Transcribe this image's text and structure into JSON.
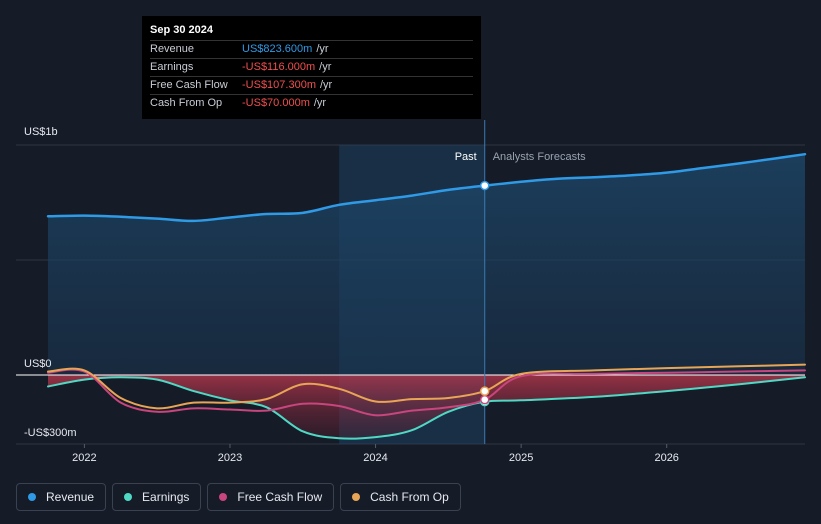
{
  "tooltip": {
    "date": "Sep 30 2024",
    "rows": [
      {
        "label": "Revenue",
        "value": "US$823.600m",
        "unit": "/yr",
        "color": "#2f9ae6"
      },
      {
        "label": "Earnings",
        "value": "-US$116.000m",
        "unit": "/yr",
        "color": "#f04f4f"
      },
      {
        "label": "Free Cash Flow",
        "value": "-US$107.300m",
        "unit": "/yr",
        "color": "#f04f4f"
      },
      {
        "label": "Cash From Op",
        "value": "-US$70.000m",
        "unit": "/yr",
        "color": "#f04f4f"
      }
    ]
  },
  "labels": {
    "past": "Past",
    "forecast": "Analysts Forecasts"
  },
  "legend": [
    {
      "label": "Revenue",
      "color": "#2f9ae6"
    },
    {
      "label": "Earnings",
      "color": "#4fd9c4"
    },
    {
      "label": "Free Cash Flow",
      "color": "#c8457d"
    },
    {
      "label": "Cash From Op",
      "color": "#e8a556"
    }
  ],
  "chart_data": {
    "type": "line",
    "y_tick_labels": [
      {
        "value": 1000,
        "label": "US$1b"
      },
      {
        "value": 0,
        "label": "US$0"
      },
      {
        "value": -300,
        "label": "-US$300m"
      }
    ],
    "ylim": [
      -300,
      1000
    ],
    "xlim": [
      2021.75,
      2026.95
    ],
    "x_ticks": [
      {
        "value": 2022,
        "label": "2022"
      },
      {
        "value": 2023,
        "label": "2023"
      },
      {
        "value": 2024,
        "label": "2024"
      },
      {
        "value": 2025,
        "label": "2025"
      },
      {
        "value": 2026,
        "label": "2026"
      }
    ],
    "past_end": 2024.75,
    "highlight_start": 2023.75,
    "series": [
      {
        "name": "Revenue",
        "color": "#2f9ae6",
        "x": [
          2021.75,
          2022.0,
          2022.25,
          2022.5,
          2022.75,
          2023.0,
          2023.25,
          2023.5,
          2023.75,
          2024.0,
          2024.25,
          2024.5,
          2024.75,
          2025.0,
          2025.25,
          2025.5,
          2025.75,
          2026.0,
          2026.25,
          2026.5,
          2026.75,
          2026.95
        ],
        "y": [
          690,
          693,
          688,
          680,
          670,
          685,
          700,
          705,
          740,
          760,
          780,
          805,
          823.6,
          840,
          853,
          860,
          868,
          880,
          900,
          920,
          942,
          960
        ]
      },
      {
        "name": "Earnings",
        "color": "#4fd9c4",
        "x": [
          2021.75,
          2022.0,
          2022.25,
          2022.5,
          2022.75,
          2023.0,
          2023.25,
          2023.5,
          2023.75,
          2024.0,
          2024.25,
          2024.5,
          2024.75,
          2025.0,
          2025.5,
          2026.0,
          2026.5,
          2026.95
        ],
        "y": [
          -50,
          -20,
          -10,
          -20,
          -70,
          -110,
          -140,
          -245,
          -275,
          -270,
          -240,
          -160,
          -116,
          -110,
          -95,
          -70,
          -40,
          -10
        ]
      },
      {
        "name": "Free Cash Flow",
        "color": "#c8457d",
        "x": [
          2021.75,
          2022.0,
          2022.25,
          2022.5,
          2022.75,
          2023.0,
          2023.25,
          2023.5,
          2023.75,
          2024.0,
          2024.25,
          2024.5,
          2024.75,
          2025.0,
          2025.5,
          2026.0,
          2026.5,
          2026.95
        ],
        "y": [
          10,
          15,
          -120,
          -160,
          -145,
          -150,
          -155,
          -125,
          -135,
          -175,
          -155,
          -140,
          -107.3,
          -5,
          5,
          10,
          15,
          20
        ]
      },
      {
        "name": "Cash From Op",
        "color": "#e8a556",
        "x": [
          2021.75,
          2022.0,
          2022.25,
          2022.5,
          2022.75,
          2023.0,
          2023.25,
          2023.5,
          2023.75,
          2024.0,
          2024.25,
          2024.5,
          2024.75,
          2025.0,
          2025.5,
          2026.0,
          2026.5,
          2026.95
        ],
        "y": [
          15,
          20,
          -100,
          -145,
          -120,
          -120,
          -105,
          -40,
          -60,
          -115,
          -105,
          -100,
          -70,
          5,
          20,
          30,
          38,
          45
        ]
      }
    ]
  }
}
